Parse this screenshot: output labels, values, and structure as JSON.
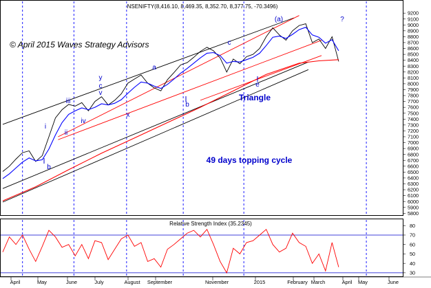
{
  "chart_data": [
    {
      "type": "line",
      "title": "NSENIFTY(8,416.10, 8,469.35, 8,352.70, 8,377.75, -70.3496)",
      "watermark": "© April 2015 Waves Strategy Advisors",
      "ylim": [
        5780,
        9260
      ],
      "y_ticks": [
        "9200",
        "9100",
        "9000",
        "8900",
        "8800",
        "8700",
        "8600",
        "8500",
        "8400",
        "8300",
        "8200",
        "8100",
        "8000",
        "7900",
        "7800",
        "7700",
        "7600",
        "7500",
        "7400",
        "7300",
        "7200",
        "7100",
        "7000",
        "6900",
        "6800",
        "6700",
        "6600",
        "6500",
        "6400",
        "6300",
        "6200",
        "6100",
        "6000",
        "5900",
        "5800"
      ],
      "x_labels": [
        "April",
        "May",
        "June",
        "July",
        "August",
        "September",
        "November",
        "2015",
        "February",
        "March",
        "April",
        "May",
        "June"
      ],
      "annotations": [
        {
          "text": "(a)"
        },
        {
          "text": "c"
        },
        {
          "text": "a"
        },
        {
          "text": "y"
        },
        {
          "text": "c"
        },
        {
          "text": "iii"
        },
        {
          "text": "v"
        },
        {
          "text": "i"
        },
        {
          "text": "iv"
        },
        {
          "text": "ii"
        },
        {
          "text": "x"
        },
        {
          "text": "b"
        },
        {
          "text": "b"
        },
        {
          "text": "e"
        },
        {
          "text": "Triangle"
        },
        {
          "text": "49 days topping cycle"
        },
        {
          "text": "?"
        }
      ],
      "series": [
        {
          "color": "#000000",
          "x": [
            0,
            5,
            10,
            15,
            20,
            25,
            30,
            35,
            40,
            45,
            50,
            55,
            60,
            65,
            70,
            75,
            80,
            85,
            90,
            95,
            100,
            105,
            110,
            115,
            120,
            125,
            130,
            135,
            140,
            145,
            150,
            155,
            160,
            165,
            170,
            175,
            180,
            185,
            190,
            195,
            200,
            205,
            210,
            215,
            220,
            225,
            230,
            235,
            240,
            245,
            250,
            255
          ],
          "values": [
            6510,
            6600,
            6720,
            6830,
            6860,
            6680,
            6780,
            7100,
            7420,
            7560,
            7650,
            7620,
            7680,
            7540,
            7700,
            7780,
            7640,
            7720,
            7830,
            8010,
            8080,
            8150,
            8010,
            7930,
            7880,
            8070,
            8190,
            8320,
            8360,
            8450,
            8550,
            8620,
            8560,
            8440,
            8200,
            8420,
            8340,
            8460,
            8500,
            8600,
            8800,
            8950,
            8830,
            8740,
            8900,
            8990,
            9020,
            8700,
            8760,
            8600,
            8800,
            8380
          ]
        },
        {
          "color": "#0000ff",
          "x": [
            0,
            5,
            10,
            15,
            20,
            25,
            30,
            35,
            40,
            45,
            50,
            55,
            60,
            65,
            70,
            75,
            80,
            85,
            90,
            95,
            100,
            105,
            110,
            115,
            120,
            125,
            130,
            135,
            140,
            145,
            150,
            155,
            160,
            165,
            170,
            175,
            180,
            185,
            190,
            195,
            200,
            205,
            210,
            215,
            220,
            225,
            230,
            235,
            240,
            245,
            250,
            255
          ],
          "values": [
            6390,
            6470,
            6570,
            6670,
            6740,
            6690,
            6710,
            6890,
            7130,
            7340,
            7480,
            7540,
            7590,
            7560,
            7600,
            7660,
            7640,
            7670,
            7730,
            7840,
            7940,
            8030,
            8010,
            7960,
            7920,
            7990,
            8080,
            8180,
            8260,
            8350,
            8440,
            8520,
            8530,
            8480,
            8350,
            8380,
            8370,
            8410,
            8450,
            8520,
            8650,
            8790,
            8810,
            8770,
            8840,
            8920,
            8960,
            8830,
            8790,
            8690,
            8750,
            8560
          ]
        },
        {
          "color": "#ff0000",
          "x": [
            0,
            25,
            50,
            75,
            100,
            125,
            150,
            175,
            200,
            225,
            240,
            255
          ],
          "values": [
            6010,
            6250,
            6540,
            6820,
            7080,
            7340,
            7600,
            7880,
            8160,
            8350,
            8390,
            8410
          ]
        }
      ],
      "channels": [
        {
          "color": "#000000",
          "x": [
            0,
            221
          ],
          "values": [
            7310,
            9120
          ]
        },
        {
          "color": "#000000",
          "x": [
            0,
            232
          ],
          "values": [
            6220,
            8370
          ]
        },
        {
          "color": "#000000",
          "x": [
            0,
            232
          ],
          "values": [
            5990,
            8240
          ]
        },
        {
          "color": "#ff0000",
          "x": [
            42,
            225
          ],
          "values": [
            7100,
            9160
          ]
        },
        {
          "color": "#ff0000",
          "x": [
            42,
            242
          ],
          "values": [
            7050,
            8740
          ]
        },
        {
          "color": "#ff0000",
          "x": [
            150,
            242
          ],
          "values": [
            7720,
            8480
          ]
        }
      ]
    },
    {
      "type": "line",
      "title": "Relative Strength Index (35.2345)",
      "ylim": [
        27,
        86
      ],
      "y_ticks": [
        "80",
        "70",
        "60",
        "50",
        "40",
        "30"
      ],
      "reference_lines": [
        70,
        30
      ],
      "series": [
        {
          "color": "#ff0000",
          "x": [
            0,
            5,
            10,
            15,
            20,
            25,
            30,
            35,
            40,
            45,
            50,
            55,
            60,
            65,
            70,
            75,
            80,
            85,
            90,
            95,
            100,
            105,
            110,
            115,
            120,
            125,
            130,
            135,
            140,
            145,
            150,
            155,
            160,
            165,
            170,
            175,
            180,
            185,
            190,
            195,
            200,
            205,
            210,
            215,
            220,
            225,
            230,
            235,
            240,
            245,
            250,
            255
          ],
          "values": [
            52,
            68,
            60,
            70,
            55,
            42,
            58,
            75,
            68,
            57,
            60,
            48,
            60,
            45,
            64,
            62,
            44,
            55,
            66,
            70,
            58,
            62,
            42,
            45,
            36,
            55,
            60,
            66,
            72,
            75,
            68,
            76,
            60,
            42,
            30,
            56,
            50,
            62,
            64,
            70,
            76,
            60,
            52,
            56,
            72,
            62,
            58,
            40,
            50,
            32,
            62,
            36
          ]
        }
      ]
    }
  ]
}
